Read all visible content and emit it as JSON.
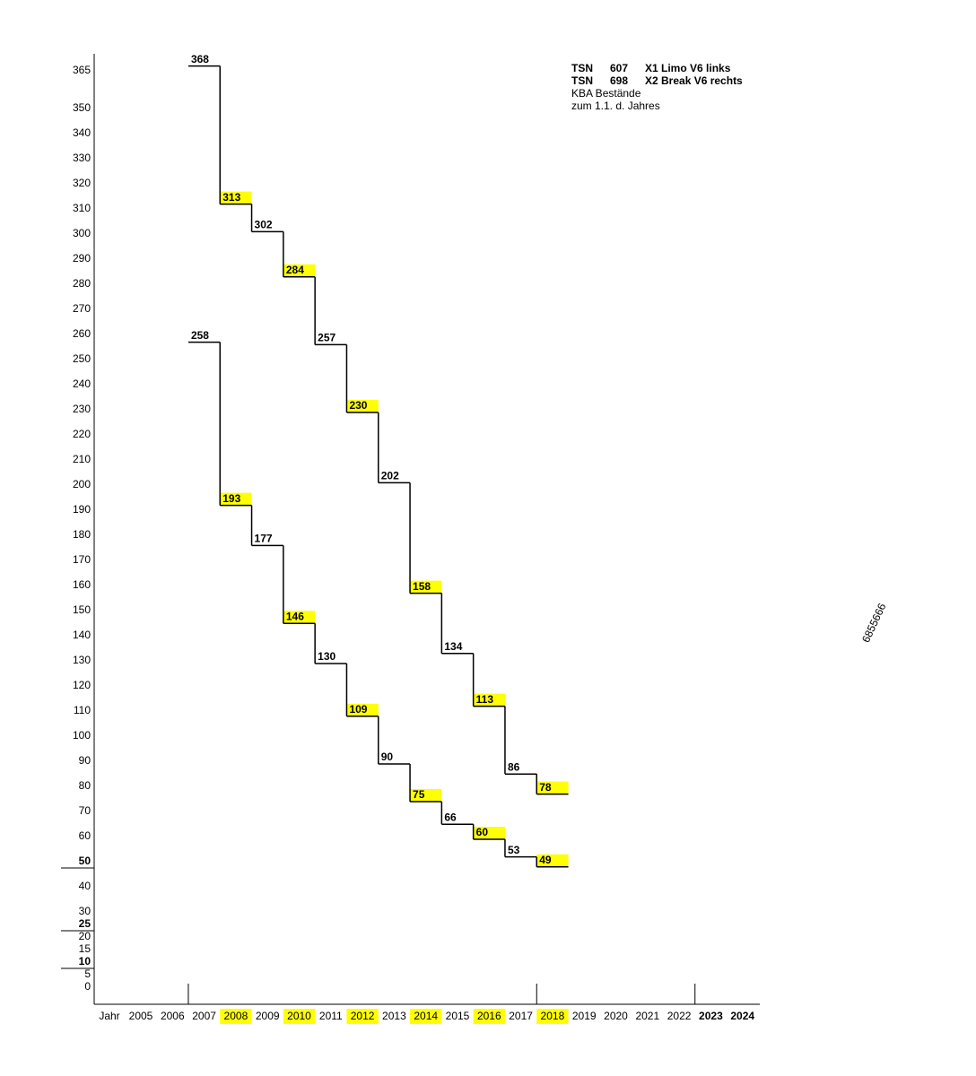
{
  "chart_data": {
    "type": "step",
    "xlabel": "Jahr",
    "categories": [
      "2005",
      "2006",
      "2007",
      "2008",
      "2009",
      "2010",
      "2011",
      "2012",
      "2013",
      "2014",
      "2015",
      "2016",
      "2017",
      "2018",
      "2019",
      "2020",
      "2021",
      "2022",
      "2023",
      "2024"
    ],
    "series": [
      {
        "code": "TSN",
        "number": "607",
        "name": "X1 Limo V6 links",
        "color": "#000000",
        "values": [
          null,
          null,
          368,
          313,
          302,
          284,
          257,
          230,
          202,
          158,
          134,
          113,
          86,
          78,
          null,
          null,
          null,
          null,
          null,
          null
        ]
      },
      {
        "code": "TSN",
        "number": "698",
        "name": "X2 Break V6 rechts",
        "color": "#000000",
        "values": [
          null,
          null,
          258,
          193,
          177,
          146,
          130,
          109,
          90,
          75,
          66,
          60,
          53,
          49,
          null,
          null,
          null,
          null,
          null,
          null
        ]
      }
    ],
    "legend_color": "#3b3bd6",
    "notes": [
      "KBA Bestände",
      "zum 1.1. d. Jahres"
    ],
    "annotation": "6855666",
    "ylim": [
      0,
      365
    ],
    "yticks": [
      0,
      5,
      10,
      15,
      20,
      25,
      30,
      40,
      50,
      60,
      70,
      80,
      90,
      100,
      110,
      120,
      130,
      140,
      150,
      160,
      170,
      180,
      190,
      200,
      210,
      220,
      230,
      240,
      250,
      260,
      270,
      280,
      290,
      300,
      310,
      320,
      330,
      340,
      350,
      365
    ],
    "emphasized_yticks": [
      10,
      25,
      50
    ],
    "highlight_categories": [
      "2008",
      "2010",
      "2012",
      "2014",
      "2016",
      "2018"
    ],
    "highlight_color": "#ffff00",
    "bold_categories": [
      "2023",
      "2024"
    ],
    "marker_categories": [
      "2007",
      "2018",
      "2023"
    ]
  }
}
